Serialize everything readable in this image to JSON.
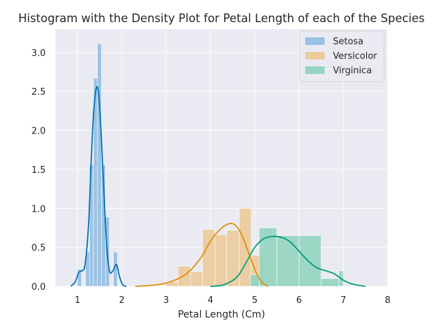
{
  "chart_data": {
    "type": "histogram",
    "title": "Histogram with the Density Plot for Petal Length of each of the Species",
    "xlabel": "Petal Length (Cm)",
    "ylabel": "",
    "xlim": [
      0.5,
      8.0
    ],
    "ylim": [
      0,
      3.3
    ],
    "xticks": [
      1,
      2,
      3,
      4,
      5,
      6,
      7,
      8
    ],
    "yticks": [
      0.0,
      0.5,
      1.0,
      1.5,
      2.0,
      2.5,
      3.0
    ],
    "grid": true,
    "legend_position": "top-right",
    "series": [
      {
        "name": "Setosa",
        "hist_color": "#8fbce0",
        "kde_color": "#0072b2",
        "bins": [
          {
            "x0": 1.0,
            "x1": 1.09,
            "density": 0.22
          },
          {
            "x0": 1.09,
            "x1": 1.18,
            "density": 0.0
          },
          {
            "x0": 1.18,
            "x1": 1.27,
            "density": 0.44
          },
          {
            "x0": 1.27,
            "x1": 1.36,
            "density": 1.56
          },
          {
            "x0": 1.36,
            "x1": 1.45,
            "density": 2.67
          },
          {
            "x0": 1.45,
            "x1": 1.54,
            "density": 3.11
          },
          {
            "x0": 1.54,
            "x1": 1.63,
            "density": 1.56
          },
          {
            "x0": 1.63,
            "x1": 1.72,
            "density": 0.89
          },
          {
            "x0": 1.72,
            "x1": 1.81,
            "density": 0.0
          },
          {
            "x0": 1.81,
            "x1": 1.9,
            "density": 0.44
          }
        ],
        "kde": [
          [
            0.85,
            0.0
          ],
          [
            0.95,
            0.06
          ],
          [
            1.03,
            0.18
          ],
          [
            1.1,
            0.2
          ],
          [
            1.17,
            0.28
          ],
          [
            1.25,
            0.8
          ],
          [
            1.3,
            1.5
          ],
          [
            1.36,
            2.2
          ],
          [
            1.42,
            2.53
          ],
          [
            1.47,
            2.5
          ],
          [
            1.52,
            2.1
          ],
          [
            1.58,
            1.4
          ],
          [
            1.65,
            0.6
          ],
          [
            1.72,
            0.2
          ],
          [
            1.8,
            0.2
          ],
          [
            1.88,
            0.28
          ],
          [
            1.95,
            0.12
          ],
          [
            2.02,
            0.02
          ],
          [
            2.1,
            0.0
          ]
        ]
      },
      {
        "name": "Versicolor",
        "hist_color": "#ecc996",
        "kde_color": "#de8f05",
        "bins": [
          {
            "x0": 3.0,
            "x1": 3.27,
            "density": 0.06
          },
          {
            "x0": 3.27,
            "x1": 3.55,
            "density": 0.26
          },
          {
            "x0": 3.55,
            "x1": 3.82,
            "density": 0.19
          },
          {
            "x0": 3.82,
            "x1": 4.1,
            "density": 0.73
          },
          {
            "x0": 4.1,
            "x1": 4.37,
            "density": 0.66
          },
          {
            "x0": 4.37,
            "x1": 4.65,
            "density": 0.72
          },
          {
            "x0": 4.65,
            "x1": 4.92,
            "density": 1.0
          },
          {
            "x0": 4.92,
            "x1": 5.2,
            "density": 0.4
          }
        ],
        "kde": [
          [
            2.3,
            0.0
          ],
          [
            2.6,
            0.01
          ],
          [
            2.9,
            0.03
          ],
          [
            3.2,
            0.08
          ],
          [
            3.5,
            0.18
          ],
          [
            3.8,
            0.38
          ],
          [
            4.0,
            0.58
          ],
          [
            4.2,
            0.72
          ],
          [
            4.4,
            0.8
          ],
          [
            4.55,
            0.79
          ],
          [
            4.7,
            0.67
          ],
          [
            4.85,
            0.45
          ],
          [
            5.0,
            0.22
          ],
          [
            5.15,
            0.06
          ],
          [
            5.3,
            0.0
          ]
        ]
      },
      {
        "name": "Virginica",
        "hist_color": "#8ed3be",
        "kde_color": "#029e73",
        "bins": [
          {
            "x0": 4.5,
            "x1": 4.9,
            "density": 0.0
          },
          {
            "x0": 4.9,
            "x1": 5.1,
            "density": 0.15
          },
          {
            "x0": 5.1,
            "x1": 5.5,
            "density": 0.75
          },
          {
            "x0": 5.5,
            "x1": 6.0,
            "density": 0.65
          },
          {
            "x0": 6.0,
            "x1": 6.5,
            "density": 0.65
          },
          {
            "x0": 6.5,
            "x1": 6.9,
            "density": 0.1
          },
          {
            "x0": 6.9,
            "x1": 7.0,
            "density": 0.2
          }
        ],
        "kde": [
          [
            4.0,
            0.0
          ],
          [
            4.3,
            0.02
          ],
          [
            4.6,
            0.12
          ],
          [
            4.8,
            0.3
          ],
          [
            5.0,
            0.5
          ],
          [
            5.2,
            0.61
          ],
          [
            5.4,
            0.64
          ],
          [
            5.6,
            0.63
          ],
          [
            5.8,
            0.57
          ],
          [
            6.0,
            0.45
          ],
          [
            6.2,
            0.33
          ],
          [
            6.4,
            0.24
          ],
          [
            6.6,
            0.2
          ],
          [
            6.8,
            0.16
          ],
          [
            7.0,
            0.08
          ],
          [
            7.2,
            0.03
          ],
          [
            7.5,
            0.0
          ]
        ]
      }
    ]
  }
}
